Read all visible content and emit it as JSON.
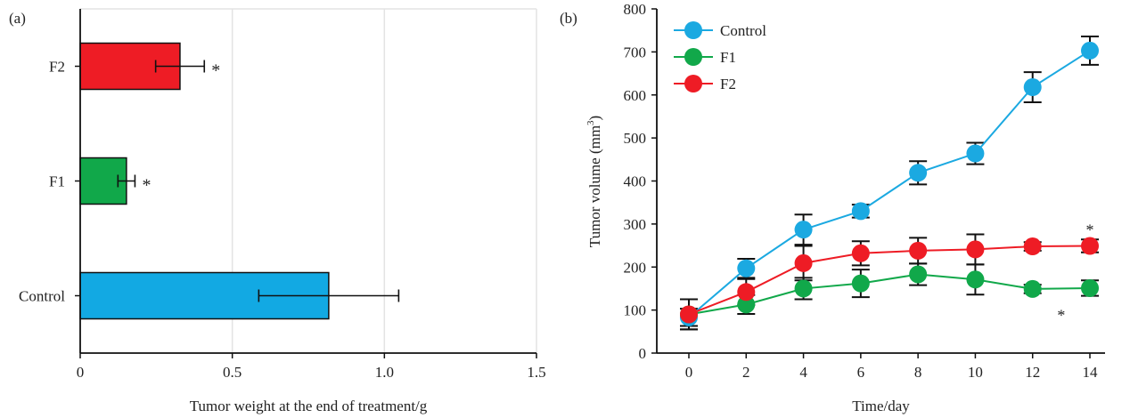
{
  "chart_data": [
    {
      "panel_label": "(a)",
      "type": "bar",
      "orientation": "horizontal",
      "categories": [
        "Control",
        "F1",
        "F2"
      ],
      "values": [
        0.817,
        0.152,
        0.328
      ],
      "errors": [
        0.23,
        0.028,
        0.08
      ],
      "significance": [
        "",
        "*",
        "*"
      ],
      "colors": [
        "#12a9e3",
        "#11a84a",
        "#ee1c25"
      ],
      "xlabel": "Tumor weight at the end of treatment/g",
      "ylabel": "",
      "xlim": [
        0,
        1.5
      ],
      "xticks": [
        "0",
        "0.5",
        "1.0",
        "1.5"
      ],
      "xtick_values": [
        0,
        0.5,
        1.0,
        1.5
      ],
      "grid": true
    },
    {
      "panel_label": "(b)",
      "type": "line",
      "x": [
        0,
        2,
        4,
        6,
        8,
        10,
        12,
        14
      ],
      "series": [
        {
          "name": "Control",
          "color": "#1ba9e1",
          "values": [
            83,
            197,
            287,
            330,
            419,
            464,
            618,
            703
          ],
          "errors": [
            20,
            22,
            35,
            15,
            27,
            25,
            35,
            33
          ]
        },
        {
          "name": "F1",
          "color": "#11a84a",
          "values": [
            90,
            113,
            150,
            162,
            183,
            171,
            149,
            151
          ],
          "errors": [
            35,
            22,
            25,
            32,
            25,
            35,
            10,
            18
          ]
        },
        {
          "name": "F2",
          "color": "#ee1c25",
          "values": [
            90,
            142,
            209,
            232,
            238,
            241,
            248,
            249
          ],
          "errors": [
            35,
            30,
            40,
            28,
            30,
            35,
            10,
            15
          ]
        }
      ],
      "annotations": [
        {
          "text": "*",
          "x": 14,
          "y": 290
        },
        {
          "text": "*",
          "x": 13,
          "y": 92
        }
      ],
      "xlabel": "Time/day",
      "ylabel": "Tumor volume (mm",
      "ylabel_sup": "3",
      "ylabel_end": ")",
      "xlim": [
        -1,
        14.5
      ],
      "ylim": [
        0,
        800
      ],
      "xticks": [
        "0",
        "2",
        "4",
        "6",
        "8",
        "10",
        "12",
        "14"
      ],
      "yticks": [
        "0",
        "100",
        "200",
        "300",
        "400",
        "500",
        "600",
        "700",
        "800"
      ],
      "legend_position": "top-left",
      "grid": false
    }
  ]
}
